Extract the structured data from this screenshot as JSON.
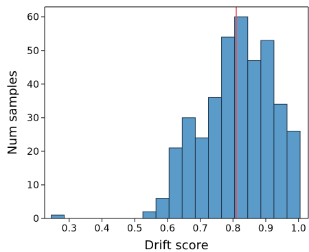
{
  "chart_data": {
    "type": "bar",
    "xlabel": "Drift score",
    "ylabel": "Num samples",
    "xlim": [
      0.225,
      1.03
    ],
    "ylim": [
      0,
      63
    ],
    "grid": false,
    "bar_color": "#5b9bc9",
    "bar_edge_color": "#1f3447",
    "threshold_line": {
      "x": 0.81,
      "color": "#e8505b"
    },
    "x_ticks": [
      {
        "value": 0.3,
        "label": "0.3"
      },
      {
        "value": 0.4,
        "label": "0.4"
      },
      {
        "value": 0.5,
        "label": "0.5"
      },
      {
        "value": 0.6,
        "label": "0.6"
      },
      {
        "value": 0.7,
        "label": "0.7"
      },
      {
        "value": 0.8,
        "label": "0.8"
      },
      {
        "value": 0.9,
        "label": "0.9"
      },
      {
        "value": 1.0,
        "label": "1.0"
      }
    ],
    "y_ticks": [
      {
        "value": 0,
        "label": "0"
      },
      {
        "value": 10,
        "label": "10"
      },
      {
        "value": 20,
        "label": "20"
      },
      {
        "value": 30,
        "label": "30"
      },
      {
        "value": 40,
        "label": "40"
      },
      {
        "value": 50,
        "label": "50"
      },
      {
        "value": 60,
        "label": "60"
      }
    ],
    "bins": [
      {
        "x0": 0.245,
        "x1": 0.285,
        "count": 1
      },
      {
        "x0": 0.285,
        "x1": 0.325,
        "count": 0
      },
      {
        "x0": 0.325,
        "x1": 0.365,
        "count": 0
      },
      {
        "x0": 0.365,
        "x1": 0.405,
        "count": 0
      },
      {
        "x0": 0.405,
        "x1": 0.445,
        "count": 0
      },
      {
        "x0": 0.445,
        "x1": 0.485,
        "count": 0
      },
      {
        "x0": 0.485,
        "x1": 0.525,
        "count": 0
      },
      {
        "x0": 0.525,
        "x1": 0.565,
        "count": 2
      },
      {
        "x0": 0.565,
        "x1": 0.605,
        "count": 6
      },
      {
        "x0": 0.605,
        "x1": 0.645,
        "count": 21
      },
      {
        "x0": 0.645,
        "x1": 0.685,
        "count": 30
      },
      {
        "x0": 0.685,
        "x1": 0.725,
        "count": 24
      },
      {
        "x0": 0.725,
        "x1": 0.765,
        "count": 36
      },
      {
        "x0": 0.765,
        "x1": 0.805,
        "count": 54
      },
      {
        "x0": 0.805,
        "x1": 0.845,
        "count": 60
      },
      {
        "x0": 0.845,
        "x1": 0.885,
        "count": 47
      },
      {
        "x0": 0.885,
        "x1": 0.925,
        "count": 53
      },
      {
        "x0": 0.925,
        "x1": 0.965,
        "count": 34
      },
      {
        "x0": 0.965,
        "x1": 1.005,
        "count": 26
      }
    ]
  }
}
